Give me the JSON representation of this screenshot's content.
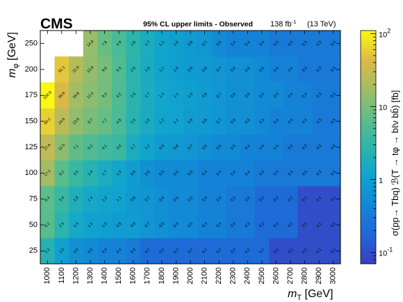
{
  "header": {
    "experiment": "CMS",
    "title": "95% CL upper limits - Observed",
    "lumi_value": "138 fb",
    "lumi_exp": "-1",
    "energy": "(13 TeV)"
  },
  "colorbar": {
    "label": "σ(pp→ Tbq) ℬ(T → tφ → bℓν bb̄) [fb]",
    "ticks": [
      {
        "value": 100,
        "base": "10",
        "exp": "2"
      },
      {
        "value": 10,
        "base": "10",
        "exp": ""
      },
      {
        "value": 1,
        "base": "1",
        "exp": ""
      },
      {
        "value": 0.1,
        "base": "10",
        "exp": "-1"
      }
    ]
  },
  "chart_data": {
    "type": "heatmap",
    "xlabel": "m",
    "xlabel_sub": "T",
    "xlabel_unit": " [GeV]",
    "ylabel": "m",
    "ylabel_sub": "φ",
    "ylabel_unit": " [GeV]",
    "x": [
      1000,
      1100,
      1200,
      1300,
      1400,
      1500,
      1600,
      1700,
      1800,
      1900,
      2000,
      2100,
      2200,
      2300,
      2400,
      2500,
      2600,
      2700,
      2800,
      2900,
      3000
    ],
    "y": [
      25,
      50,
      75,
      100,
      125,
      150,
      175,
      200,
      250
    ],
    "ytick_labels": [
      "25",
      "50",
      "75",
      "100",
      "125",
      "150",
      "175",
      "200",
      "250"
    ],
    "zscale": "log",
    "zlim": [
      0.07,
      110
    ],
    "values": [
      [
        "2.3",
        "1.0",
        "0.6",
        "0.5",
        "0.4",
        "0.4",
        "0.3",
        "0.2",
        "0.2",
        "0.2",
        "0.2",
        "0.2",
        "0.2",
        "0.2",
        "0.2",
        "0.2",
        "0.1",
        "0.1",
        "0.1",
        "0.1",
        "0.1"
      ],
      [
        "6.2",
        "2.5",
        "1.4",
        "1.1",
        "1.0",
        "0.9",
        "0.9",
        "0.7",
        "0.6",
        "0.5",
        "0.5",
        "0.4",
        "0.4",
        "0.3",
        "0.3",
        "0.2",
        "0.2",
        "0.2",
        "0.1",
        "0.1",
        "0.1"
      ],
      [
        "6.4",
        "3.4",
        "1.9",
        "1.4",
        "1.2",
        "1.1",
        "0.8",
        "0.7",
        "0.6",
        "0.5",
        "0.5",
        "0.4",
        "0.4",
        "0.3",
        "0.3",
        "0.2",
        "0.2",
        "0.2",
        "0.1",
        "0.1",
        "0.1"
      ],
      [
        "17.1",
        "6.2",
        "3.5",
        "2.4",
        "1.7",
        "1.3",
        "0.9",
        "0.6",
        "0.5",
        "0.5",
        "0.5",
        "0.4",
        "0.4",
        "0.4",
        "0.4",
        "0.3",
        "0.3",
        "0.3",
        "0.3",
        "0.3",
        "0.3"
      ],
      [
        "27.6",
        "12.5",
        "7.1",
        "5.2",
        "4.1",
        "3.6",
        "1.7",
        "1.2",
        "0.9",
        "0.8",
        "0.7",
        "0.6",
        "0.5",
        "0.5",
        "0.4",
        "0.4",
        "0.4",
        "0.3",
        "0.3",
        "0.3",
        "0.3"
      ],
      [
        "60.2",
        "24.9",
        "13.9",
        "9.7",
        "7.7",
        "4.8",
        "2.4",
        "1.6",
        "1.2",
        "1.1",
        "0.9",
        "0.8",
        "0.7",
        "0.6",
        "0.6",
        "0.5",
        "0.4",
        "0.4",
        "0.4",
        "0.3",
        "0.3"
      ],
      [
        "106.9",
        "39.9",
        "16.8",
        "12.4",
        "9.3",
        "5.2",
        "2.6",
        "1.7",
        "1.3",
        "1.1",
        "1.0",
        "0.9",
        "0.7",
        "0.6",
        "0.6",
        "0.5",
        "0.5",
        "0.4",
        "0.4",
        "0.3",
        "0.3"
      ],
      [
        null,
        "51.1",
        "22.9",
        "13.8",
        "9.6",
        "5.5",
        "2.6",
        "1.6",
        "1.2",
        "1.0",
        "0.9",
        "0.8",
        "0.7",
        "0.6",
        "0.6",
        "0.5",
        "0.4",
        "0.4",
        "0.3",
        "0.3",
        "0.3"
      ],
      [
        null,
        null,
        null,
        "14.8",
        "7.8",
        "4.9",
        "2.8",
        "1.7",
        "1.2",
        "1.0",
        "0.8",
        "0.7",
        "0.5",
        "0.4",
        "0.4",
        "0.4",
        "0.3",
        "0.3",
        "0.3",
        "0.3",
        "0.3"
      ]
    ]
  }
}
